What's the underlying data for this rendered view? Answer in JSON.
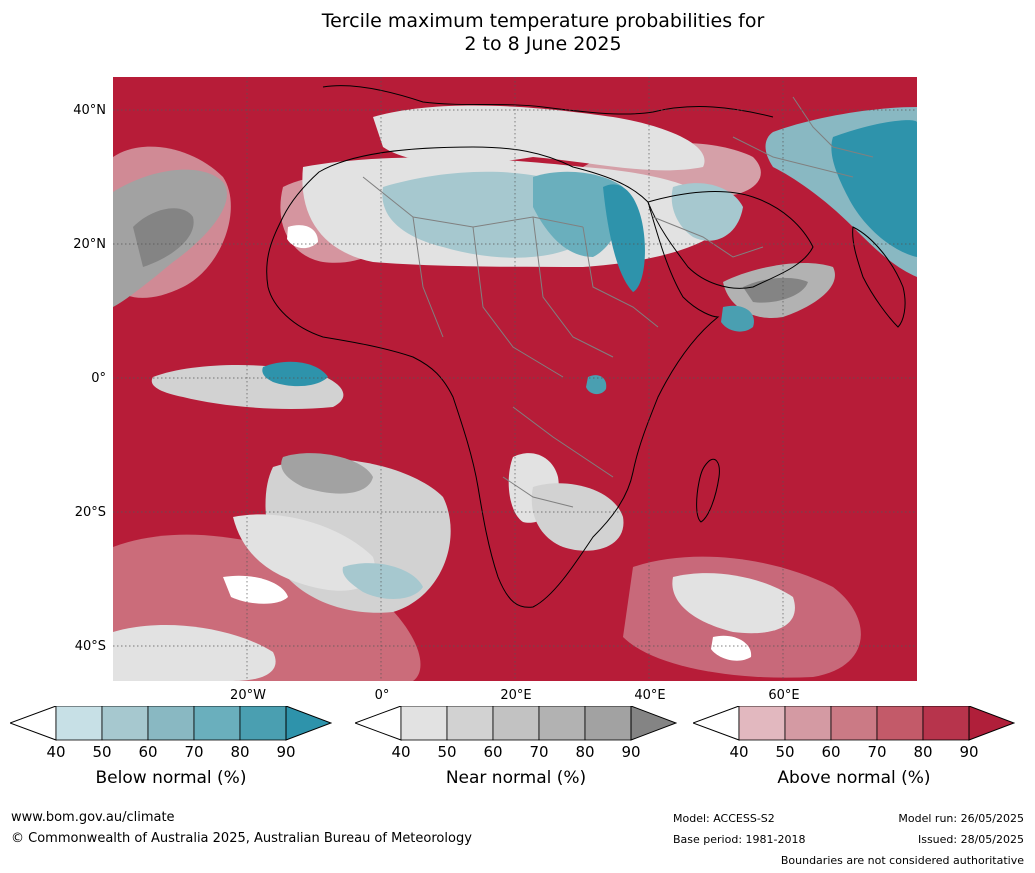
{
  "title": {
    "line1": "Tercile maximum temperature probabilities for",
    "line2": "2 to 8 June 2025"
  },
  "axes": {
    "lat_labels": [
      "40°N",
      "20°N",
      "0°",
      "20°S",
      "40°S"
    ],
    "lon_labels": [
      "20°W",
      "0°",
      "20°E",
      "40°E",
      "60°E"
    ]
  },
  "colorbars": [
    {
      "label": "Below normal (%)",
      "ticks": [
        "40",
        "50",
        "60",
        "70",
        "80",
        "90"
      ],
      "colors": [
        "#ffffff",
        "#c7e0e6",
        "#a6c8cf",
        "#89b8c2",
        "#6aafbd",
        "#4a9fb1",
        "#2e93ab"
      ]
    },
    {
      "label": "Near normal (%)",
      "ticks": [
        "40",
        "50",
        "60",
        "70",
        "80",
        "90"
      ],
      "colors": [
        "#ffffff",
        "#e2e2e2",
        "#d2d2d2",
        "#c2c2c2",
        "#b2b2b2",
        "#a2a2a2",
        "#848484"
      ]
    },
    {
      "label": "Above normal (%)",
      "ticks": [
        "40",
        "50",
        "60",
        "70",
        "80",
        "90"
      ],
      "colors": [
        "#ffffff",
        "#e2b8bf",
        "#d49aa3",
        "#cb7a85",
        "#c35a69",
        "#b7344c",
        "#b01f3a"
      ]
    }
  ],
  "footer": {
    "website": "www.bom.gov.au/climate",
    "copyright": "© Commonwealth of Australia 2025, Australian Bureau of Meteorology",
    "model": "Model: ACCESS-S2",
    "base_period": "Base period: 1981-2018",
    "model_run": "Model run: 26/05/2025",
    "issued": "Issued: 28/05/2025",
    "disclaimer": "Boundaries are not considered authoritative"
  }
}
